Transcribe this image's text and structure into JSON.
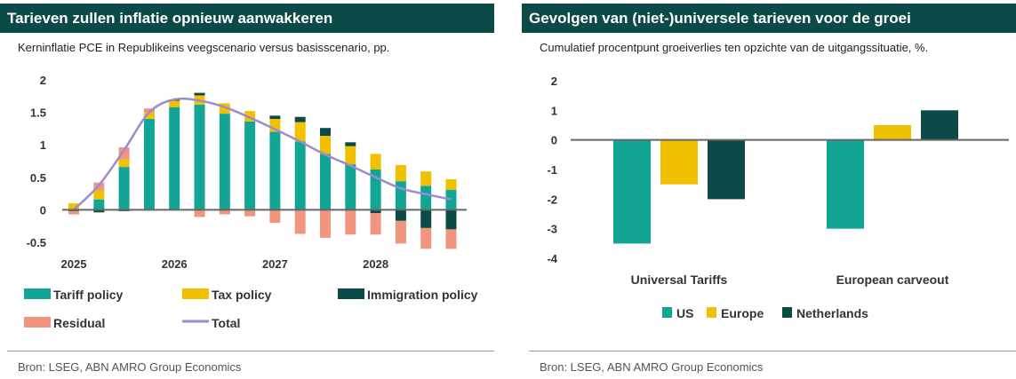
{
  "left": {
    "title": "Tarieven zullen inflatie opnieuw aanwakkeren",
    "subtitle": "Kerninflatie PCE in Republikeins veegscenario versus basisscenario, pp.",
    "source": "Bron:  LSEG, ABN AMRO Group Economics"
  },
  "right": {
    "title": "Gevolgen van (niet-)universele tarieven voor de groei",
    "subtitle": "Cumulatief procentpunt groeiverlies ten opzichte van de uitgangssituatie, %.",
    "source": "Bron: LSEG, ABN AMRO Group Economics"
  },
  "colors": {
    "tariff": "#12a596",
    "tax": "#f1c100",
    "immigration": "#0b4a46",
    "residual": "#f2957f",
    "total": "#9b8bd1",
    "axis": "#666666"
  },
  "chart_data": [
    {
      "type": "bar",
      "stacked": true,
      "ylim": [
        -0.5,
        2
      ],
      "yticks": [
        "-0.5",
        "0",
        "0.5",
        "1",
        "1.5",
        "2"
      ],
      "xtick_labels": [
        "2025",
        "2026",
        "2027",
        "2028"
      ],
      "x": [
        "2025Q1",
        "2025Q2",
        "2025Q3",
        "2025Q4",
        "2026Q1",
        "2026Q2",
        "2026Q3",
        "2026Q4",
        "2027Q1",
        "2027Q2",
        "2027Q3",
        "2027Q4",
        "2028Q1",
        "2028Q2",
        "2028Q3",
        "2028Q4"
      ],
      "series": [
        {
          "name": "Tariff policy",
          "key": "tariff",
          "values": [
            0.0,
            0.16,
            0.66,
            1.4,
            1.58,
            1.62,
            1.48,
            1.36,
            1.2,
            1.05,
            0.86,
            0.7,
            0.62,
            0.44,
            0.37,
            0.31
          ]
        },
        {
          "name": "Tax policy",
          "key": "tax",
          "values": [
            0.1,
            0.14,
            0.12,
            0.1,
            0.1,
            0.14,
            0.16,
            0.16,
            0.2,
            0.3,
            0.28,
            0.28,
            0.24,
            0.25,
            0.22,
            0.16
          ]
        },
        {
          "name": "Immigration policy",
          "key": "immigration",
          "values": [
            -0.02,
            -0.04,
            -0.02,
            0.0,
            0.02,
            0.04,
            0.0,
            0.0,
            0.05,
            0.08,
            0.12,
            0.06,
            -0.05,
            -0.17,
            -0.28,
            -0.3
          ]
        },
        {
          "name": "Residual",
          "key": "residual",
          "values": [
            -0.05,
            0.12,
            0.18,
            0.06,
            0.0,
            -0.11,
            -0.07,
            -0.1,
            -0.2,
            -0.37,
            -0.43,
            -0.38,
            -0.33,
            -0.35,
            -0.32,
            -0.3
          ]
        }
      ],
      "total": {
        "name": "Total",
        "key": "total",
        "values": [
          0.0,
          0.38,
          0.92,
          1.5,
          1.7,
          1.68,
          1.58,
          1.42,
          1.24,
          1.05,
          0.85,
          0.68,
          0.5,
          0.33,
          0.24,
          0.16
        ]
      },
      "legend": [
        "Tariff policy",
        "Tax policy",
        "Immigration policy",
        "Residual",
        "Total"
      ]
    },
    {
      "type": "bar",
      "ylim": [
        -4,
        2
      ],
      "yticks": [
        "-4",
        "-3",
        "-2",
        "-1",
        "0",
        "1",
        "2"
      ],
      "categories": [
        "Universal Tariffs",
        "European carveout"
      ],
      "series": [
        {
          "name": "US",
          "key": "tariff",
          "values": [
            -3.5,
            -3.0
          ]
        },
        {
          "name": "Europe",
          "key": "tax",
          "values": [
            -1.5,
            0.5
          ]
        },
        {
          "name": "Netherlands",
          "key": "immigration",
          "values": [
            -2.0,
            1.0
          ]
        }
      ],
      "legend": [
        "US",
        "Europe",
        "Netherlands"
      ]
    }
  ]
}
